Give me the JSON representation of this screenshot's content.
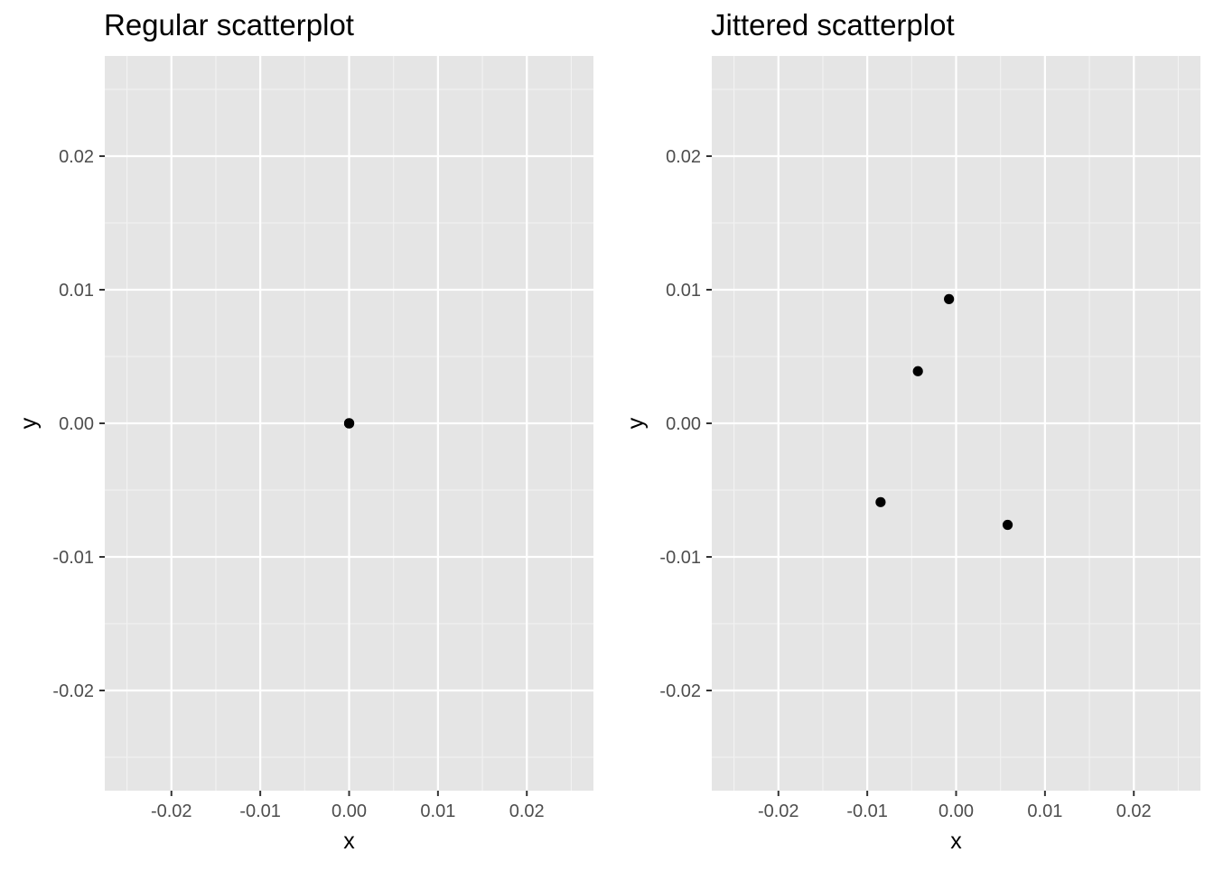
{
  "style": {
    "panel_background": "#e5e5e5",
    "grid_major": "#ffffff",
    "grid_minor": "#f2f2f2",
    "tick_color": "#333333",
    "tick_label_color": "#4d4d4d",
    "point_color": "#000000"
  },
  "chart_data": [
    {
      "type": "scatter",
      "title": "Regular scatterplot",
      "xlabel": "x",
      "ylabel": "y",
      "xlim": [
        -0.0275,
        0.0275
      ],
      "ylim": [
        -0.0275,
        0.0275
      ],
      "x_ticks": [
        -0.02,
        -0.01,
        0.0,
        0.01,
        0.02
      ],
      "x_tick_labels": [
        "-0.02",
        "-0.01",
        "0.00",
        "0.01",
        "0.02"
      ],
      "y_ticks": [
        0.02,
        0.01,
        0.0,
        -0.01,
        -0.02
      ],
      "y_tick_labels": [
        "0.02",
        "0.01",
        "0.00",
        "-0.01",
        "-0.02"
      ],
      "grid": true,
      "points": [
        {
          "x": 0.0,
          "y": 0.0
        },
        {
          "x": 0.0,
          "y": 0.0
        },
        {
          "x": 0.0,
          "y": 0.0
        },
        {
          "x": 0.0,
          "y": 0.0
        }
      ]
    },
    {
      "type": "scatter",
      "title": "Jittered scatterplot",
      "xlabel": "x",
      "ylabel": "y",
      "xlim": [
        -0.0275,
        0.0275
      ],
      "ylim": [
        -0.0275,
        0.0275
      ],
      "x_ticks": [
        -0.02,
        -0.01,
        0.0,
        0.01,
        0.02
      ],
      "x_tick_labels": [
        "-0.02",
        "-0.01",
        "0.00",
        "0.01",
        "0.02"
      ],
      "y_ticks": [
        0.02,
        0.01,
        0.0,
        -0.01,
        -0.02
      ],
      "y_tick_labels": [
        "0.02",
        "0.01",
        "0.00",
        "-0.01",
        "-0.02"
      ],
      "grid": true,
      "points": [
        {
          "x": -0.0008,
          "y": 0.0093
        },
        {
          "x": -0.0043,
          "y": 0.0039
        },
        {
          "x": -0.0085,
          "y": -0.0059
        },
        {
          "x": 0.0058,
          "y": -0.0076
        }
      ]
    }
  ]
}
